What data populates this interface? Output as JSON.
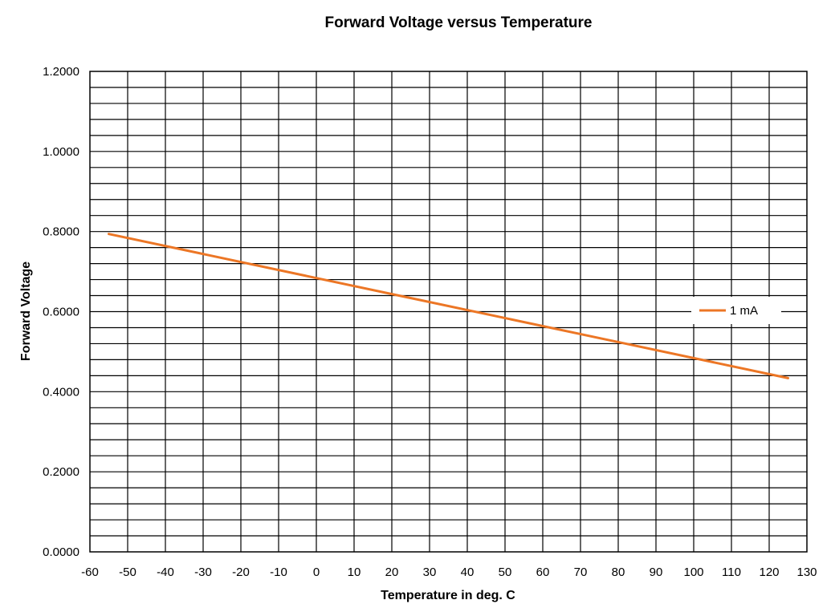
{
  "chart_data": {
    "type": "line",
    "title": "Forward Voltage versus Temperature",
    "xlabel": "Temperature in deg. C",
    "ylabel": "Forward Voltage",
    "xlim": [
      -60,
      130
    ],
    "ylim": [
      0,
      1.2
    ],
    "x_ticks": [
      "-60",
      "-50",
      "-40",
      "-30",
      "-20",
      "-10",
      "0",
      "10",
      "20",
      "30",
      "40",
      "50",
      "60",
      "70",
      "80",
      "90",
      "100",
      "110",
      "120",
      "130"
    ],
    "y_ticks": [
      "0.0000",
      "0.2000",
      "0.4000",
      "0.6000",
      "0.8000",
      "1.0000",
      "1.2000"
    ],
    "grid": true,
    "legend_position": "right",
    "series": [
      {
        "name": "1 mA",
        "color": "#ec7625",
        "x": [
          -55,
          125
        ],
        "y": [
          0.794,
          0.434
        ]
      }
    ]
  }
}
